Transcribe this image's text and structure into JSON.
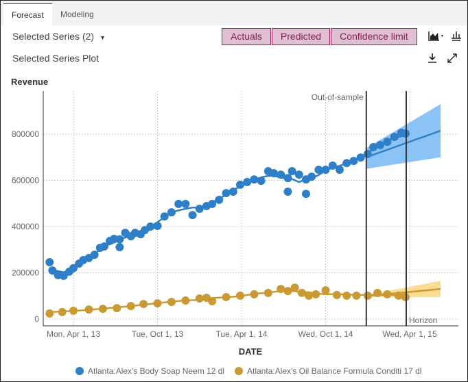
{
  "tabs": [
    {
      "label": "Forecast",
      "active": true
    },
    {
      "label": "Modeling",
      "active": false
    }
  ],
  "toolbar": {
    "series_select": "Selected Series (2)",
    "buttons": [
      "Actuals",
      "Predicted",
      "Confidence limit"
    ],
    "chart_type_icon": "area-chart-icon",
    "bar_icon": "histogram-icon"
  },
  "plot": {
    "title": "Selected Series Plot",
    "download_icon": "download-icon",
    "expand_icon": "expand-icon"
  },
  "colors": {
    "blue": "#2f7fc8",
    "blue_band": "#7fbdf5",
    "gold": "#c99a33",
    "gold_band": "#fcd580",
    "button_bg": "#dfc0d3",
    "button_border": "#9a1f5e"
  },
  "chart_data": {
    "type": "scatter",
    "ylabel": "Revenue",
    "xlabel": "DATE",
    "x_unit": "months since Apr 1, 2013",
    "xlim": [
      -2.2,
      29.3
    ],
    "ylim": [
      -30000,
      980000
    ],
    "yticks": [
      0,
      200000,
      400000,
      600000,
      800000
    ],
    "xticks": [
      {
        "t": 0,
        "label": "Mon, Apr 1, 13"
      },
      {
        "t": 6,
        "label": "Tue, Oct 1, 13"
      },
      {
        "t": 12,
        "label": "Tue, Apr 1, 14"
      },
      {
        "t": 18,
        "label": "Wed, Oct 1, 14"
      },
      {
        "t": 24,
        "label": "Wed, Apr 1, 15"
      }
    ],
    "ref_lines": [
      {
        "t": 20.9,
        "label": "Out-of-sample"
      },
      {
        "t": 23.75,
        "label": "Horizon"
      }
    ],
    "series": [
      {
        "name": "Atlanta:Alex's Body Soap Neem 12 dl",
        "color": "#2f7fc8",
        "band": "#7fbdf5",
        "t": [
          -1.7,
          -1.5,
          -1.1,
          -0.7,
          -0.3,
          0,
          0.4,
          0.7,
          1.1,
          1.5,
          1.9,
          2.2,
          2.6,
          2.9,
          3.3,
          3.3,
          3.7,
          4.1,
          4.4,
          4.8,
          5.1,
          5.5,
          6.0,
          6.5,
          7.0,
          7.5,
          8.0,
          8.5,
          9.0,
          9.5,
          9.9,
          10.4,
          10.9,
          11.4,
          11.9,
          12.4,
          12.9,
          13.4,
          13.9,
          14.3,
          14.8,
          15.3,
          15.3,
          15.6,
          16.1,
          16.6,
          16.6,
          17.0,
          17.5,
          18.0,
          18.5,
          19.0,
          19.5,
          20.0,
          20.5,
          21.0,
          21.4,
          21.9,
          22.4,
          22.9,
          23.4,
          23.7
        ],
        "y": [
          246000,
          210000,
          190000,
          187000,
          205000,
          220000,
          240000,
          255000,
          264000,
          278000,
          308000,
          314000,
          338000,
          347000,
          311000,
          345000,
          373000,
          358000,
          373000,
          367000,
          385000,
          400000,
          403000,
          444000,
          462000,
          498000,
          498000,
          450000,
          477000,
          489000,
          498000,
          516000,
          545000,
          551000,
          581000,
          593000,
          604000,
          598000,
          640000,
          631000,
          625000,
          610000,
          551000,
          640000,
          625000,
          604000,
          542000,
          616000,
          646000,
          646000,
          664000,
          646000,
          675000,
          684000,
          699000,
          714000,
          744000,
          753000,
          767000,
          788000,
          806000,
          803000
        ],
        "forecast": {
          "t": [
            20.9,
            26.2
          ],
          "y": [
            700000,
            815000
          ],
          "lower": [
            650000,
            700000
          ],
          "upper": [
            740000,
            930000
          ]
        }
      },
      {
        "name": "Atlanta:Alex's Oil Balance Formula Conditi 17 dl",
        "color": "#c99a33",
        "band": "#fcd580",
        "t": [
          -1.7,
          -0.8,
          0,
          1.1,
          2.1,
          3.1,
          4.1,
          5.0,
          6.0,
          7.0,
          8.0,
          9.0,
          9.5,
          9.9,
          10.9,
          11.9,
          12.9,
          13.9,
          14.8,
          15.3,
          15.8,
          16.3,
          16.8,
          17.3,
          18.0,
          18.8,
          19.5,
          20.2,
          21.0,
          21.7,
          22.4,
          23.2,
          23.7
        ],
        "y": [
          24000,
          30000,
          36000,
          41000,
          44000,
          47000,
          56000,
          65000,
          68000,
          74000,
          80000,
          89000,
          92000,
          77000,
          95000,
          101000,
          107000,
          113000,
          130000,
          121000,
          136000,
          113000,
          101000,
          107000,
          124000,
          104000,
          101000,
          101000,
          101000,
          113000,
          107000,
          101000,
          95000
        ],
        "forecast": {
          "t": [
            21.0,
            26.2
          ],
          "y": [
            100000,
            130000
          ],
          "lower": [
            95000,
            95000
          ],
          "upper": [
            105000,
            165000
          ]
        }
      }
    ]
  }
}
